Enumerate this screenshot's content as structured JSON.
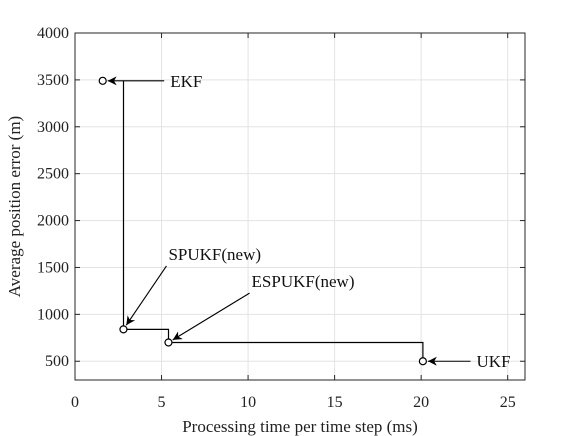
{
  "chart_data": {
    "type": "line",
    "xlabel": "Processing time per time step (ms)",
    "ylabel": "Average position error (m)",
    "xlim": [
      0,
      26
    ],
    "ylim": [
      300,
      4000
    ],
    "xticks": [
      0,
      5,
      10,
      15,
      20,
      25
    ],
    "yticks": [
      500,
      1000,
      1500,
      2000,
      2500,
      3000,
      3500,
      4000
    ],
    "grid": true,
    "points": [
      {
        "label": "EKF",
        "x": 1.6,
        "y": 3490
      },
      {
        "label": "SPUKF(new)",
        "x": 2.8,
        "y": 840
      },
      {
        "label": "ESPUKF(new)",
        "x": 5.4,
        "y": 700
      },
      {
        "label": "UKF",
        "x": 20.1,
        "y": 500
      }
    ],
    "step_path": [
      [
        2.8,
        3490
      ],
      [
        2.8,
        840
      ],
      [
        5.4,
        840
      ],
      [
        5.4,
        700
      ],
      [
        20.1,
        700
      ],
      [
        20.1,
        500
      ]
    ],
    "annotations": [
      {
        "text": "EKF",
        "x": 5.5,
        "y": 3465,
        "target": 0
      },
      {
        "text": "SPUKF(new)",
        "x": 5.4,
        "y": 1580,
        "target": 1
      },
      {
        "text": "ESPUKF(new)",
        "x": 10.2,
        "y": 1290,
        "target": 2
      },
      {
        "text": "UKF",
        "x": 23.2,
        "y": 490,
        "target": 3
      }
    ]
  }
}
